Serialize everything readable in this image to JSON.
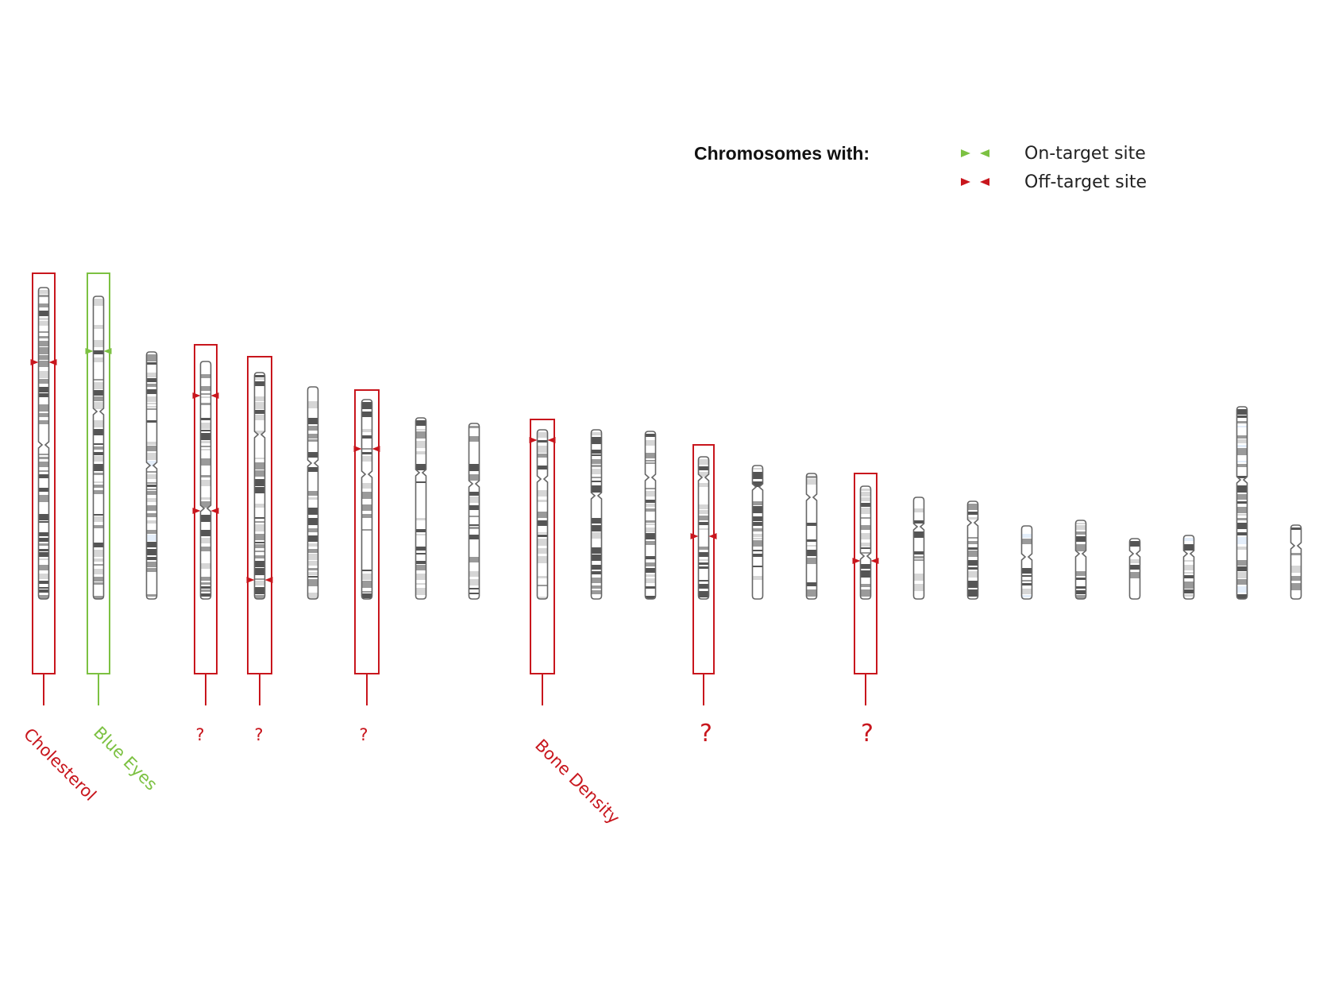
{
  "legend": {
    "title": "Chromosomes with:",
    "on_target_label": "On-target site",
    "off_target_label": "Off-target site"
  },
  "colors": {
    "on_target": "#7cc142",
    "off_target": "#c8161d",
    "outline": "#666666",
    "band_dark": "#555555",
    "band_mid": "#9a9a9a",
    "band_light": "#d6d6d6",
    "band_blue": "#e4eefa"
  },
  "labels": {
    "chr1": "Cholesterol",
    "chr2": "Blue Eyes",
    "chr4": "?",
    "chr5": "?",
    "chr7": "?",
    "chr10": "Bone Density",
    "chr13": "?",
    "chr16": "?"
  }
}
